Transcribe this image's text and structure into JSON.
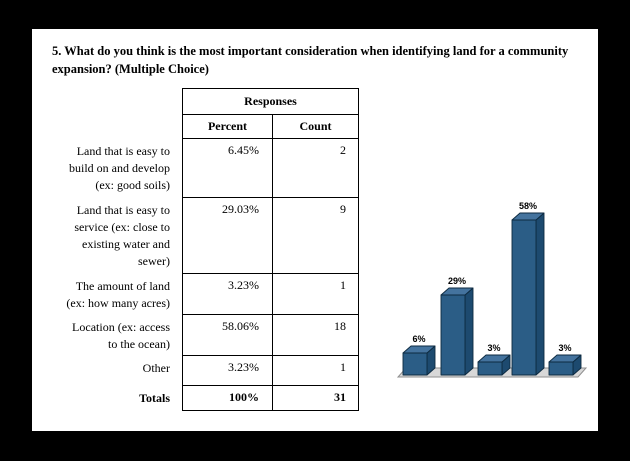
{
  "question": {
    "title": "5. What do you think is the most important consideration when identifying land for a community\nexpansion? (Multiple Choice)"
  },
  "table": {
    "header_group": "Responses",
    "columns": [
      "Percent",
      "Count"
    ],
    "rows": [
      {
        "label": "Land that is easy to\nbuild on and develop\n(ex: good soils)",
        "percent": "6.45%",
        "count": "2"
      },
      {
        "label": "Land that is easy to\nservice (ex: close to\nexisting water and\nsewer)",
        "percent": "29.03%",
        "count": "9"
      },
      {
        "label": "The amount of land\n(ex: how many acres)",
        "percent": "3.23%",
        "count": "1"
      },
      {
        "label": "Location (ex: access\nto the ocean)",
        "percent": "58.06%",
        "count": "18"
      },
      {
        "label": "Other",
        "percent": "3.23%",
        "count": "1"
      }
    ],
    "totals": {
      "label": "Totals",
      "percent": "100%",
      "count": "31"
    }
  },
  "chart_data": {
    "type": "bar",
    "style": "3d-column",
    "title": "",
    "xlabel": "",
    "ylabel": "",
    "categories": [
      "Land that is easy to build on and develop (ex: good soils)",
      "Land that is easy to service (ex: close to existing water and sewer)",
      "The amount of land (ex: how many acres)",
      "Location (ex: access to the ocean)",
      "Other"
    ],
    "values": [
      6.45,
      29.03,
      3.23,
      58.06,
      3.23
    ],
    "bar_labels": [
      "6%",
      "29%",
      "3%",
      "58%",
      "3%"
    ],
    "counts": [
      2,
      9,
      1,
      18,
      1
    ],
    "grid": false,
    "legend": false,
    "colors": {
      "bar_front": "#2b5d86",
      "bar_top": "#44739e",
      "bar_side": "#1d4a6f",
      "bar_outline": "#0d2a40",
      "floor": "#d8d8d8",
      "floor_edge": "#8f8f8f"
    }
  }
}
